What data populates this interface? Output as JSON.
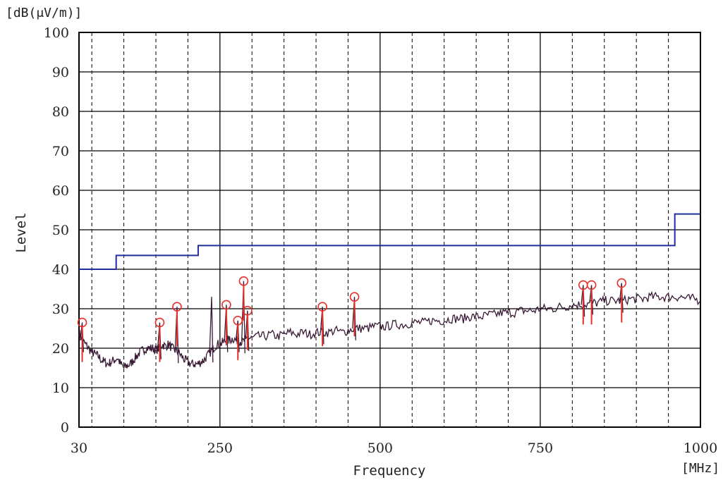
{
  "chart_data": {
    "type": "line",
    "ylabel": "Level",
    "yunit": "[dB(μV/m)]",
    "xlabel": "Frequency",
    "xunit": "[MHz]",
    "ylim": [
      0,
      100
    ],
    "xlim": [
      30,
      1000
    ],
    "x_tick_labels": [
      "30",
      "250",
      "500",
      "750",
      "1000"
    ],
    "y_tick_labels": [
      "0",
      "10",
      "20",
      "30",
      "40",
      "50",
      "60",
      "70",
      "80",
      "90",
      "100"
    ],
    "grid": true,
    "colors": {
      "limit": "#1f2f9c",
      "measurement": "#3a1a36",
      "peaks": "#e8302a"
    },
    "limit_line": {
      "points": [
        [
          30,
          40
        ],
        [
          88,
          40
        ],
        [
          88,
          43.5
        ],
        [
          216,
          43.5
        ],
        [
          216,
          46
        ],
        [
          960,
          46
        ],
        [
          960,
          54
        ],
        [
          1000,
          54
        ]
      ]
    },
    "measurement": {
      "x": [
        30,
        35,
        40,
        45,
        50,
        55,
        60,
        65,
        70,
        75,
        80,
        85,
        90,
        95,
        100,
        105,
        110,
        115,
        120,
        125,
        130,
        135,
        140,
        145,
        150,
        155,
        160,
        165,
        170,
        175,
        180,
        185,
        190,
        195,
        200,
        205,
        210,
        215,
        220,
        225,
        230,
        235,
        240,
        245,
        250,
        255,
        260,
        265,
        270,
        275,
        280,
        285,
        290,
        295,
        300,
        310,
        320,
        330,
        340,
        350,
        360,
        370,
        380,
        390,
        400,
        410,
        420,
        430,
        440,
        450,
        460,
        470,
        480,
        490,
        500,
        510,
        520,
        530,
        540,
        550,
        560,
        570,
        580,
        590,
        600,
        610,
        620,
        630,
        640,
        650,
        660,
        670,
        680,
        690,
        700,
        710,
        720,
        730,
        740,
        750,
        760,
        770,
        780,
        790,
        800,
        810,
        820,
        830,
        840,
        850,
        860,
        870,
        880,
        890,
        900,
        910,
        920,
        930,
        940,
        950,
        960,
        970,
        980,
        990,
        1000
      ],
      "y": [
        24,
        22,
        21,
        20,
        19,
        18.5,
        18,
        17,
        16.5,
        16,
        16.5,
        17,
        17.5,
        16,
        15,
        15.5,
        16,
        17,
        18,
        19,
        19.5,
        20,
        20,
        20,
        19.5,
        20,
        21,
        20.5,
        21,
        20,
        19.5,
        19,
        18,
        17,
        16.5,
        16,
        16,
        16,
        16.5,
        17,
        18,
        19,
        20,
        21,
        21,
        21.5,
        22,
        22,
        22.5,
        22,
        22,
        21.5,
        22,
        22.5,
        22.5,
        23,
        23,
        23.5,
        23,
        23.5,
        24,
        23.5,
        24,
        23.5,
        24,
        24,
        24,
        24.5,
        24,
        24.5,
        25,
        25,
        25,
        25.5,
        25.5,
        25.5,
        26,
        26,
        26,
        26.5,
        26.5,
        26.5,
        27,
        27,
        27,
        27.5,
        27.5,
        27.5,
        28,
        28,
        28,
        28.5,
        28.5,
        29,
        29,
        29,
        29.5,
        29.5,
        29.5,
        30,
        30,
        30,
        30.5,
        30.5,
        31,
        31,
        31,
        31.5,
        31.5,
        32,
        32,
        32,
        32,
        32.5,
        32.5,
        32.5,
        33,
        33,
        33,
        33,
        33,
        33,
        32.5,
        32.5,
        32
      ]
    },
    "spikes": [
      {
        "x": 35,
        "y": 26.5
      },
      {
        "x": 156,
        "y": 26.5
      },
      {
        "x": 183,
        "y": 30.5
      },
      {
        "x": 237,
        "y": 33
      },
      {
        "x": 260,
        "y": 31
      },
      {
        "x": 278,
        "y": 27
      },
      {
        "x": 287,
        "y": 37
      },
      {
        "x": 293,
        "y": 29.5
      },
      {
        "x": 410,
        "y": 30.5
      },
      {
        "x": 460,
        "y": 33
      },
      {
        "x": 817,
        "y": 36
      },
      {
        "x": 830,
        "y": 36
      },
      {
        "x": 877,
        "y": 36.5
      }
    ],
    "peaks": [
      {
        "x": 35,
        "y": 26.5
      },
      {
        "x": 156,
        "y": 26.5
      },
      {
        "x": 183,
        "y": 30.5
      },
      {
        "x": 260,
        "y": 31
      },
      {
        "x": 278,
        "y": 27
      },
      {
        "x": 287,
        "y": 37
      },
      {
        "x": 293,
        "y": 29.5
      },
      {
        "x": 410,
        "y": 30.5
      },
      {
        "x": 460,
        "y": 33
      },
      {
        "x": 817,
        "y": 36
      },
      {
        "x": 830,
        "y": 36
      },
      {
        "x": 877,
        "y": 36.5
      }
    ]
  }
}
